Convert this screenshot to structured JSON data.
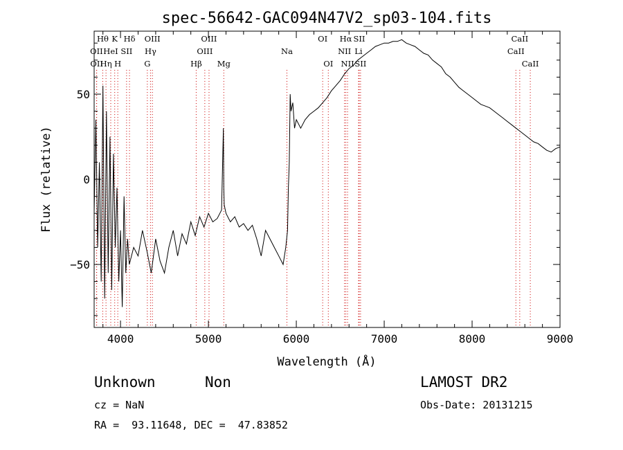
{
  "chart_data": {
    "type": "line",
    "title": "spec-56642-GAC094N47V2_sp03-104.fits",
    "xlabel": "Wavelength (Å)",
    "ylabel": "Flux (relative)",
    "xlim": [
      3700,
      9000
    ],
    "ylim": [
      -87,
      87
    ],
    "xticks": [
      4000,
      5000,
      6000,
      7000,
      8000,
      9000
    ],
    "yticks": [
      -50,
      0,
      50
    ],
    "grid": false,
    "series": [
      {
        "values_x": [
          3700,
          3720,
          3740,
          3760,
          3780,
          3800,
          3820,
          3840,
          3860,
          3880,
          3900,
          3920,
          3940,
          3960,
          3980,
          4000,
          4020,
          4040,
          4060,
          4080,
          4100,
          4150,
          4200,
          4250,
          4300,
          4350,
          4400,
          4450,
          4500,
          4550,
          4600,
          4650,
          4700,
          4750,
          4800,
          4850,
          4900,
          4950,
          5000,
          5050,
          5100,
          5150,
          5170,
          5175,
          5180,
          5200,
          5250,
          5300,
          5350,
          5400,
          5450,
          5500,
          5550,
          5600,
          5650,
          5700,
          5750,
          5800,
          5850,
          5880,
          5900,
          5910,
          5920,
          5930,
          5940,
          5960,
          5980,
          6000,
          6050,
          6100,
          6150,
          6200,
          6250,
          6300,
          6350,
          6400,
          6450,
          6500,
          6550,
          6600,
          6650,
          6700,
          6750,
          6800,
          6850,
          6900,
          6950,
          7000,
          7050,
          7100,
          7150,
          7200,
          7250,
          7300,
          7350,
          7400,
          7450,
          7500,
          7550,
          7600,
          7650,
          7700,
          7750,
          7800,
          7850,
          7900,
          7950,
          8000,
          8050,
          8100,
          8150,
          8200,
          8250,
          8300,
          8350,
          8400,
          8450,
          8500,
          8550,
          8600,
          8650,
          8700,
          8750,
          8800,
          8850,
          8900,
          8950,
          9000
        ],
        "values_y": [
          -20,
          35,
          -40,
          10,
          -60,
          55,
          -70,
          40,
          -55,
          25,
          -65,
          15,
          -40,
          -5,
          -60,
          -30,
          -75,
          -10,
          -55,
          -35,
          -50,
          -40,
          -45,
          -30,
          -42,
          -55,
          -35,
          -48,
          -55,
          -40,
          -30,
          -45,
          -32,
          -38,
          -25,
          -33,
          -22,
          -28,
          -20,
          -25,
          -23,
          -18,
          30,
          -5,
          -15,
          -20,
          -25,
          -22,
          -28,
          -26,
          -30,
          -27,
          -35,
          -45,
          -30,
          -35,
          -40,
          -45,
          -50,
          -40,
          -30,
          -5,
          10,
          50,
          40,
          45,
          30,
          35,
          30,
          35,
          38,
          40,
          42,
          45,
          48,
          52,
          55,
          58,
          62,
          65,
          67,
          70,
          72,
          74,
          76,
          78,
          79,
          80,
          80,
          81,
          81,
          82,
          80,
          79,
          78,
          76,
          74,
          73,
          70,
          68,
          66,
          62,
          60,
          57,
          54,
          52,
          50,
          48,
          46,
          44,
          43,
          42,
          40,
          38,
          36,
          34,
          32,
          30,
          28,
          26,
          24,
          22,
          21,
          19,
          17,
          16,
          18,
          19
        ]
      }
    ],
    "lines": [
      {
        "label": "Hθ",
        "x": 3798,
        "row": 0
      },
      {
        "label": "OII",
        "x": 3727,
        "row": 1
      },
      {
        "label": "OII",
        "x": 3729,
        "row": 2
      },
      {
        "label": "K",
        "x": 3934,
        "row": 0
      },
      {
        "label": "HeI",
        "x": 3889,
        "row": 1
      },
      {
        "label": "Hη",
        "x": 3835,
        "row": 2
      },
      {
        "label": "H",
        "x": 3969,
        "row": 2
      },
      {
        "label": "Hδ",
        "x": 4102,
        "row": 0
      },
      {
        "label": "SII",
        "x": 4069,
        "row": 1
      },
      {
        "label": "OIII",
        "x": 4363,
        "row": 0
      },
      {
        "label": "Hγ",
        "x": 4341,
        "row": 1
      },
      {
        "label": "G",
        "x": 4305,
        "row": 2
      },
      {
        "label": "Hβ",
        "x": 4861,
        "row": 2
      },
      {
        "label": "OIII",
        "x": 5007,
        "row": 0
      },
      {
        "label": "OIII",
        "x": 4959,
        "row": 1
      },
      {
        "label": "Mg",
        "x": 5175,
        "row": 2
      },
      {
        "label": "Na",
        "x": 5893,
        "row": 1
      },
      {
        "label": "OI",
        "x": 6300,
        "row": 0
      },
      {
        "label": "OI",
        "x": 6364,
        "row": 2
      },
      {
        "label": "Hα",
        "x": 6563,
        "row": 0
      },
      {
        "label": "SII",
        "x": 6716,
        "row": 0
      },
      {
        "label": "NII",
        "x": 6548,
        "row": 1
      },
      {
        "label": "Li",
        "x": 6708,
        "row": 1
      },
      {
        "label": "NII",
        "x": 6583,
        "row": 2
      },
      {
        "label": "SII",
        "x": 6731,
        "row": 2
      },
      {
        "label": "CaII",
        "x": 8542,
        "row": 0
      },
      {
        "label": "CaII",
        "x": 8498,
        "row": 1
      },
      {
        "label": "CaII",
        "x": 8662,
        "row": 2
      }
    ]
  },
  "info": {
    "class": "Unknown",
    "subclass": "Non",
    "survey": "LAMOST DR2",
    "cz": "cz = NaN",
    "obs_date": "Obs-Date: 20131215",
    "coords": "RA =  93.11648, DEC =  47.83852"
  }
}
